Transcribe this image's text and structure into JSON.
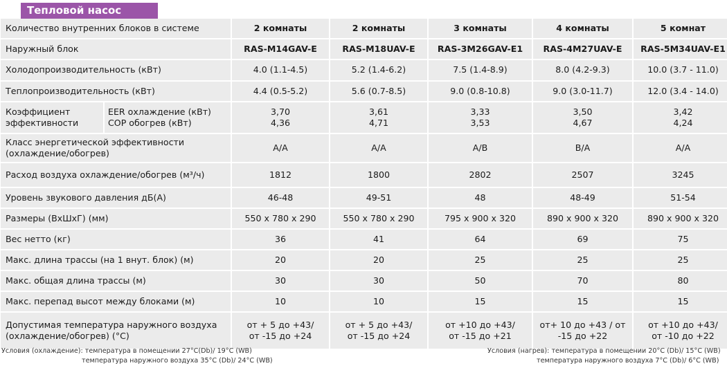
{
  "title": "Тепловой насос",
  "rows": {
    "units": {
      "label": "Количество внутренних блоков в системе",
      "values": [
        "2 комнаты",
        "2 комнаты",
        "3 комнаты",
        "4 комнаты",
        "5 комнат"
      ]
    },
    "outdoor": {
      "label": "Наружный блок",
      "values": [
        "RAS-M14GAV-E",
        "RAS-M18UAV-E",
        "RAS-3M26GAV-E1",
        "RAS-4M27UAV-E",
        "RAS-5M34UAV-E1"
      ]
    },
    "cool": {
      "label": "Холодопроизводительность (кВт)",
      "values": [
        "4.0 (1.1-4.5)",
        "5.2 (1.4-6.2)",
        "7.5 (1.4-8.9)",
        "8.0 (4.2-9.3)",
        "10.0 (3.7 - 11.0)"
      ]
    },
    "heat": {
      "label": "Теплопроизводительность (кВт)",
      "values": [
        "4.4 (0.5-5.2)",
        "5.6 (0.7-8.5)",
        "9.0 (0.8-10.8)",
        "9.0 (3.0-11.7)",
        "12.0 (3.4 - 14.0)"
      ]
    },
    "eff": {
      "label_line1": "Коэффициент",
      "label_line2": "эффективности",
      "eer_label": "EER охлаждение (кВт)",
      "cop_label": "COP обогрев (кВт)",
      "eer": [
        "3,70",
        "3,61",
        "3,33",
        "3,50",
        "3,42"
      ],
      "cop": [
        "4,36",
        "4,71",
        "3,53",
        "4,67",
        "4,24"
      ]
    },
    "class": {
      "label_line1": "Класс энергетической эффективности",
      "label_line2": "(охлаждение/обогрев)",
      "values": [
        "A/A",
        "A/A",
        "A/B",
        "B/A",
        "A/A"
      ]
    },
    "air": {
      "label": "Расход воздуха  охлаждение/обогрев  (м³/ч)",
      "values": [
        "1812",
        "1800",
        "2802",
        "2507",
        "3245"
      ]
    },
    "noise": {
      "label": "Уровень звукового давления дБ(А)",
      "values": [
        "46-48",
        "49-51",
        "48",
        "48-49",
        "51-54"
      ]
    },
    "size": {
      "label": "Размеры (ВхШхГ) (мм)",
      "values": [
        "550 x 780 x 290",
        "550 x 780 x 290",
        "795 x 900 x 320",
        "890 x 900 x 320",
        "890 x 900 x 320"
      ]
    },
    "weight": {
      "label": "Вес нетто (кг)",
      "values": [
        "36",
        "41",
        "64",
        "69",
        "75"
      ]
    },
    "pipe1": {
      "label": "Макс. длина трассы (на 1 внут. блок) (м)",
      "values": [
        "20",
        "20",
        "25",
        "25",
        "25"
      ]
    },
    "pipe": {
      "label": "Макс. общая длина трассы (м)",
      "values": [
        "30",
        "30",
        "50",
        "70",
        "80"
      ]
    },
    "height": {
      "label": "Макс. перепад высот между блоками (м)",
      "values": [
        "10",
        "10",
        "15",
        "15",
        "15"
      ]
    },
    "temp": {
      "label_line1": "Допустимая температура наружного воздуха",
      "label_line2": "(охлаждение/обогрев) (°С)",
      "line1": [
        "от + 5 до +43/",
        "от + 5 до +43/",
        "от +10 до +43/",
        "от+ 10 до +43 / от",
        "от +10 до +43/"
      ],
      "line2": [
        "от -15 до +24",
        "от -15 до +24",
        "от -15 до +21",
        "-15 до +22",
        "от -10 до +22"
      ]
    }
  },
  "notes": {
    "cool_1": "Условия (охлаждение): температура в помещении 27°C(Db)/ 19°C (WB)",
    "cool_2": "температура наружного воздуха 35°C (Db)/ 24°C (WB)",
    "heat_1": "Условия (нагрев): температура в помещении 20°C (Db)/ 15°C (WB)",
    "heat_2": "температура наружного воздуха 7°C (Db)/ 6°C (WB)"
  }
}
